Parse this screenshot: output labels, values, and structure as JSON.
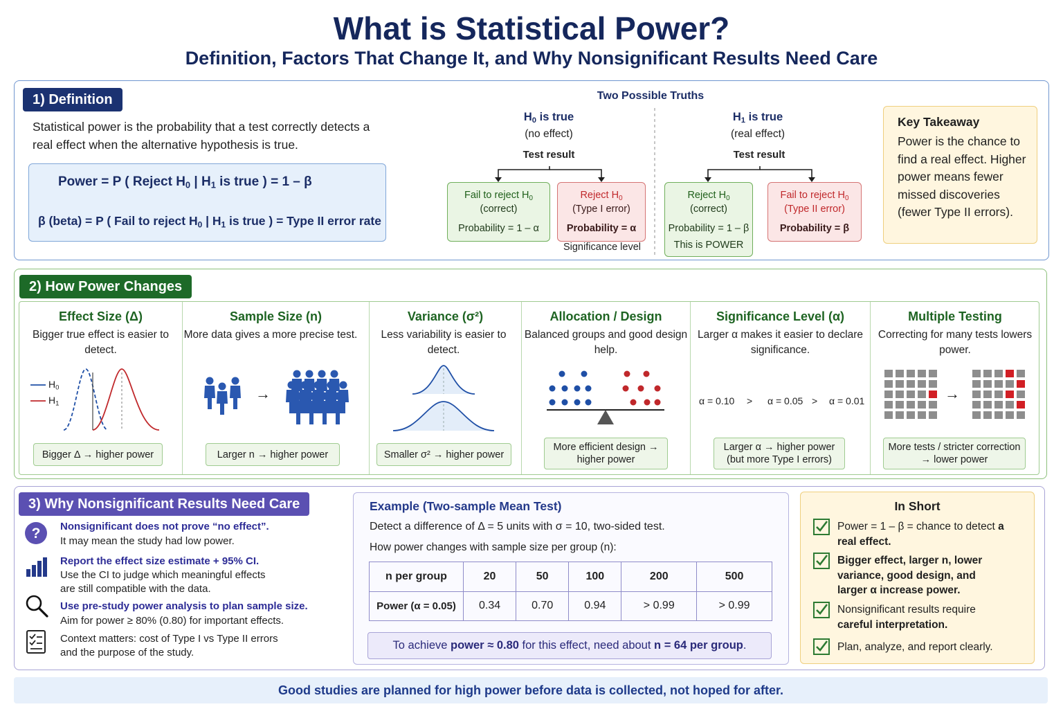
{
  "title": "What is Statistical Power?",
  "subtitle": "Definition, Factors That Change It, and Why Nonsignificant Results Need Care",
  "definition": {
    "tag": "1) Definition",
    "text": "Statistical power is the probability that a test correctly detects a real effect when the alternative hypothesis is true.",
    "formula_power": {
      "a": "Power  =  P ( Reject H",
      "b": "0",
      "c": "   |   H",
      "d": "1",
      "e": " is true )  = 1 – β"
    },
    "formula_beta": {
      "a": "β (beta) = P ( Fail to reject H",
      "b": "0",
      "c": "  |  H",
      "d": "1",
      "e": " is true )  =  Type II error rate"
    },
    "truths_title": "Two Possible Truths",
    "h0_head": {
      "a": "H",
      "b": "0",
      "c": " is true"
    },
    "h0_sub": "(no effect)",
    "h1_head": {
      "a": "H",
      "b": "1",
      "c": " is true"
    },
    "h1_sub": "(real effect)",
    "test_result": "Test result",
    "outcomes": {
      "h0_fail": {
        "ttl_a": "Fail to reject H",
        "ttl_b": "0",
        "sub": "(correct)",
        "prob": "Probability = 1 – α"
      },
      "h0_reject": {
        "ttl_a": "Reject H",
        "ttl_b": "0",
        "sub": "(Type I error)",
        "prob": "Probability = α",
        "below": "Significance level"
      },
      "h1_reject": {
        "ttl_a": "Reject H",
        "ttl_b": "0",
        "sub": "(correct)",
        "prob": "Probability = 1 – β",
        "extra": "This is POWER"
      },
      "h1_fail": {
        "ttl_a": "Fail to reject H",
        "ttl_b": "0",
        "sub": "(Type II error)",
        "prob": "Probability = β"
      }
    },
    "takeaway_title": "Key Takeaway",
    "takeaway_text": "Power is the chance to find a real effect. Higher power means fewer missed discoveries (fewer Type II errors)."
  },
  "changes": {
    "tag": "2) How Power Changes",
    "factors": [
      {
        "title": "Effect Size (Δ)",
        "desc": "Bigger true effect is easier to detect.",
        "pill": "Bigger Δ → higher power"
      },
      {
        "title": "Sample Size (n)",
        "desc": "More data gives a more precise test.",
        "pill": "Larger n → higher power"
      },
      {
        "title": "Variance (σ²)",
        "desc": "Less variability is easier to detect.",
        "pill": "Smaller σ² → higher power"
      },
      {
        "title": "Allocation / Design",
        "desc": "Balanced groups and good design help.",
        "pill": "More efficient design → higher power"
      },
      {
        "title": "Significance Level (α)",
        "desc": "Larger α makes it easier to declare significance.",
        "pill": "Larger α → higher power (but more Type I errors)"
      },
      {
        "title": "Multiple Testing",
        "desc": "Correcting for many tests lowers power.",
        "pill": "More tests / stricter correction → lower power"
      }
    ],
    "legend_h0": {
      "a": "H",
      "b": "0"
    },
    "legend_h1": {
      "a": "H",
      "b": "1"
    },
    "alpha_010": "α = 0.10",
    "alpha_005": "α = 0.05",
    "alpha_001": "α = 0.01",
    "gt": ">",
    "arrow": "→"
  },
  "nonsig": {
    "tag": "3) Why Nonsignificant Results Need Care",
    "items": [
      {
        "icon": "question-icon",
        "head": "Nonsignificant does not prove “no effect”.",
        "text": "It may mean the study had low power."
      },
      {
        "icon": "bar-chart-icon",
        "head": "Report the effect size estimate + 95% CI.",
        "text": "Use the CI to judge which meaningful effects are still compatible with the data."
      },
      {
        "icon": "magnifier-icon",
        "head": "Use pre-study power analysis to plan sample size.",
        "text": "Aim for power ≥ 80% (0.80) for important effects."
      },
      {
        "icon": "checklist-icon",
        "head": "",
        "text": "Context matters: cost of Type I vs Type II errors and the purpose of the study."
      }
    ]
  },
  "example": {
    "title": "Example (Two-sample Mean Test)",
    "line1": "Detect a difference of Δ = 5 units with σ = 10, two-sided test.",
    "line2": "How power changes with sample size per group (n):",
    "table": {
      "header": [
        "n per group",
        "20",
        "50",
        "100",
        "200",
        "500"
      ],
      "row_label": "Power (α = 0.05)",
      "values": [
        "0.34",
        "0.70",
        "0.94",
        "> 0.99",
        "> 0.99"
      ]
    },
    "achieve": {
      "a": "To achieve ",
      "b": "power ≈ 0.80",
      "c": " for this effect, need about ",
      "d": "n = 64 per group",
      "e": "."
    }
  },
  "in_short": {
    "title": "In Short",
    "items": [
      {
        "a": "Power = 1 – β = chance to detect ",
        "b": "a real effect."
      },
      {
        "a": "",
        "b": "Bigger effect, larger n, lower variance, good design, and larger α increase power."
      },
      {
        "a": "Nonsignificant results require ",
        "b": "careful interpretation."
      },
      {
        "a": "Plan, analyze, and report clearly.",
        "b": ""
      }
    ]
  },
  "footer": "Good studies are planned for high power before data is collected, not hoped for after.",
  "colors": {
    "navy": "#15275c",
    "green": "#1d6a28",
    "purple": "#5b50b2",
    "blue_curve": "#1f4fa6",
    "red_curve": "#c0282b"
  }
}
